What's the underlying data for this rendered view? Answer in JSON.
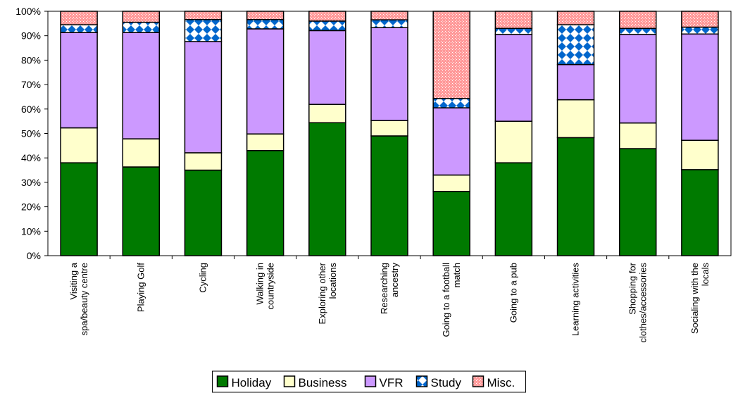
{
  "chart_data": {
    "type": "bar",
    "stacked": true,
    "title": "",
    "xlabel": "",
    "ylabel": "",
    "ylim": [
      0,
      100
    ],
    "yticks": [
      "0%",
      "10%",
      "20%",
      "30%",
      "40%",
      "50%",
      "60%",
      "70%",
      "80%",
      "90%",
      "100%"
    ],
    "categories": [
      [
        "Visiting a",
        "spa/beauty centre"
      ],
      [
        "Playing Golf"
      ],
      [
        "Cycling"
      ],
      [
        "Walking in",
        "countryside"
      ],
      [
        "Exploring other",
        "locations"
      ],
      [
        "Researching",
        "ancestry"
      ],
      [
        "Going to a football",
        "match"
      ],
      [
        "Going to a pub"
      ],
      [
        "Learning activities"
      ],
      [
        "Shopping for",
        "clothes/accessories"
      ],
      [
        "Socialing with the",
        "locals"
      ]
    ],
    "series": [
      {
        "name": "Holiday",
        "color": "#007a00",
        "pattern": "solid",
        "values": [
          38,
          36.3,
          35,
          43,
          54.4,
          49,
          26.3,
          38,
          48.3,
          43.8,
          35.2
        ]
      },
      {
        "name": "Business",
        "color": "#ffffcc",
        "pattern": "solid",
        "values": [
          14.3,
          11.5,
          7.1,
          6.8,
          7.5,
          6.3,
          6.7,
          17,
          15.5,
          10.5,
          12
        ]
      },
      {
        "name": "VFR",
        "color": "#cc99ff",
        "pattern": "solid",
        "values": [
          39,
          43.5,
          45.5,
          43,
          30.2,
          38,
          27.5,
          35.5,
          14.4,
          36.2,
          43.5
        ]
      },
      {
        "name": "Study",
        "color": "#0066cc",
        "pattern": "checker",
        "values": [
          3.2,
          4.2,
          9,
          3.8,
          3.9,
          3.2,
          3.8,
          2.5,
          16.3,
          2.5,
          2.8
        ]
      },
      {
        "name": "Misc.",
        "color": "#ff9999",
        "pattern": "dots",
        "values": [
          5.5,
          4.5,
          3.4,
          3.4,
          4,
          3.5,
          35.7,
          7,
          5.5,
          7,
          6.5
        ]
      }
    ],
    "legend": {
      "position": "bottom"
    },
    "grid": false
  }
}
